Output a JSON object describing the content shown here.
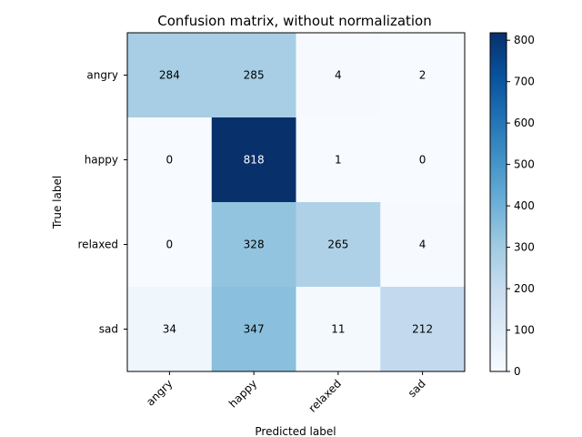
{
  "chart_data": {
    "type": "heatmap",
    "title": "Confusion matrix, without normalization",
    "xlabel": "Predicted label",
    "ylabel": "True label",
    "x_categories": [
      "angry",
      "happy",
      "relaxed",
      "sad"
    ],
    "y_categories": [
      "angry",
      "happy",
      "relaxed",
      "sad"
    ],
    "values": [
      [
        284,
        285,
        4,
        2
      ],
      [
        0,
        818,
        1,
        0
      ],
      [
        0,
        328,
        265,
        4
      ],
      [
        34,
        347,
        11,
        212
      ]
    ],
    "colormap": "Blues",
    "colorbar": {
      "range": [
        0,
        818
      ],
      "ticks": [
        0,
        100,
        200,
        300,
        400,
        500,
        600,
        700,
        800
      ],
      "tick_labels": [
        "0",
        "100",
        "200",
        "300",
        "400",
        "500",
        "600",
        "700",
        "800"
      ]
    },
    "grid": false,
    "x_tick_rotation_deg": 45
  }
}
